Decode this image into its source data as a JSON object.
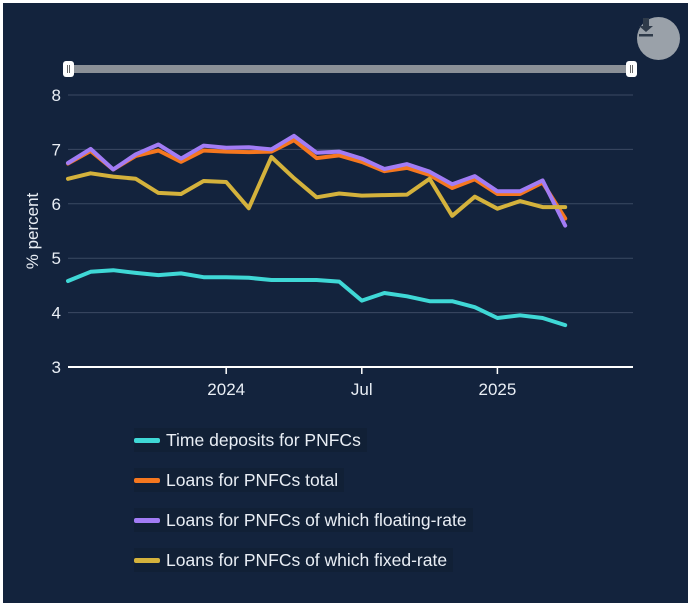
{
  "chart_data": {
    "type": "line",
    "ylabel": "% percent",
    "ylim": [
      3,
      8
    ],
    "yticks": [
      3,
      4,
      5,
      6,
      7,
      8
    ],
    "x_range": [
      "2023-06",
      "2025-07"
    ],
    "xticks": [
      {
        "value": "2024-01",
        "label": "2024"
      },
      {
        "value": "2024-07",
        "label": "Jul"
      },
      {
        "value": "2025-01",
        "label": "2025"
      }
    ],
    "x": [
      "2023-06",
      "2023-07",
      "2023-08",
      "2023-09",
      "2023-10",
      "2023-11",
      "2023-12",
      "2024-01",
      "2024-02",
      "2024-03",
      "2024-04",
      "2024-05",
      "2024-06",
      "2024-07",
      "2024-08",
      "2024-09",
      "2024-10",
      "2024-11",
      "2024-12",
      "2025-01",
      "2025-02",
      "2025-03",
      "2025-04",
      "2025-05",
      "2025-06",
      "2025-07"
    ],
    "grid": true,
    "legend_position": "bottom",
    "series": [
      {
        "name": "Time deposits for PNFCs",
        "color": "#3fd8d6",
        "values": [
          4.58,
          4.75,
          4.78,
          4.73,
          4.69,
          4.72,
          4.65,
          4.65,
          4.64,
          4.6,
          4.6,
          4.6,
          4.57,
          4.22,
          4.36,
          4.3,
          4.21,
          4.21,
          4.1,
          3.9,
          3.95,
          3.9,
          3.77,
          null,
          null,
          null
        ]
      },
      {
        "name": "Loans for PNFCs total",
        "color": "#f5771f",
        "values": [
          6.74,
          6.97,
          6.63,
          6.88,
          6.98,
          6.77,
          6.98,
          6.96,
          6.95,
          6.96,
          7.17,
          6.84,
          6.89,
          6.77,
          6.6,
          6.66,
          6.53,
          6.29,
          6.45,
          6.18,
          6.18,
          6.39,
          5.73,
          null,
          null,
          null
        ]
      },
      {
        "name": "Loans for PNFCs of which floating-rate",
        "color": "#a27cf5",
        "values": [
          6.75,
          7.01,
          6.63,
          6.91,
          7.09,
          6.83,
          7.07,
          7.03,
          7.04,
          7.0,
          7.25,
          6.94,
          6.96,
          6.83,
          6.64,
          6.73,
          6.59,
          6.36,
          6.51,
          6.23,
          6.23,
          6.43,
          5.6,
          null,
          null,
          null
        ]
      },
      {
        "name": "Loans for PNFCs of which fixed-rate",
        "color": "#d4b23c",
        "values": [
          6.46,
          6.56,
          6.5,
          6.46,
          6.2,
          6.18,
          6.42,
          6.4,
          5.92,
          6.86,
          6.47,
          6.12,
          6.19,
          6.15,
          6.16,
          6.17,
          6.46,
          5.78,
          6.13,
          5.91,
          6.05,
          5.94,
          5.94,
          null,
          null,
          null
        ]
      }
    ]
  },
  "toolbar": {
    "download_icon": "download-icon"
  },
  "navigator": {
    "range_start": "2023-06",
    "range_end": "2025-07"
  },
  "colors": {
    "background": "#13233d",
    "grid": "#3b4a63",
    "axis": "#ffffff",
    "text": "#e9eef5"
  }
}
